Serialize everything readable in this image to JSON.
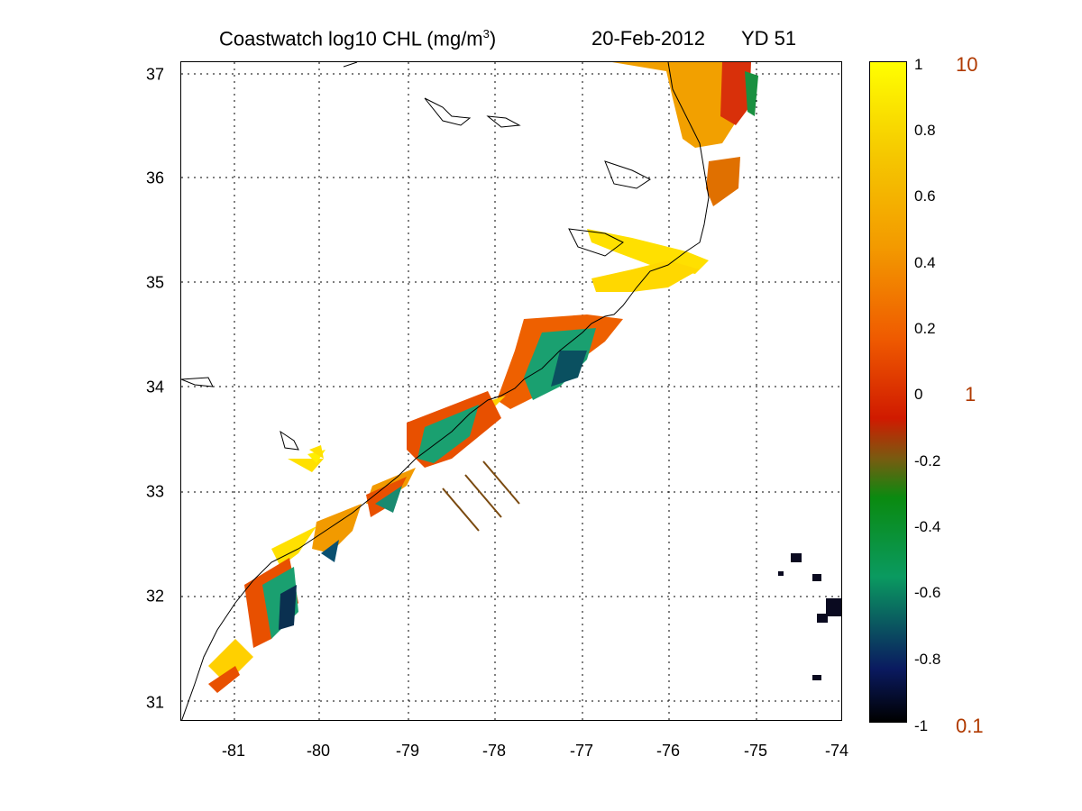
{
  "title": {
    "main_prefix": "Coastwatch  log10  CHL (mg/m",
    "main_sup": "3",
    "main_suffix": ")",
    "date": "20-Feb-2012",
    "yearday": "YD 51"
  },
  "map": {
    "x_ticks": [
      "-81",
      "-80",
      "-79",
      "-78",
      "-77",
      "-76",
      "-75",
      "-74"
    ],
    "y_ticks": [
      "37",
      "36",
      "35",
      "34",
      "33",
      "32",
      "31"
    ],
    "grid": "dotted",
    "colors": {
      "coastline": "#000000",
      "transect": "#7a4a10"
    }
  },
  "colorbar": {
    "ticks": [
      "1",
      "0.8",
      "0.6",
      "0.4",
      "0.2",
      "0",
      "-0.2",
      "-0.4",
      "-0.6",
      "-0.8",
      "-1"
    ],
    "linear_labels": [
      "10",
      "1",
      "0.1"
    ],
    "colors": {
      "max": "#ffff00",
      "mid_high": "#f39a00",
      "mid": "#d01a00",
      "zero": "#7a5a10",
      "mid_low": "#0a9a60",
      "low": "#0a1a60",
      "min": "#000000",
      "label_color": "#b03a00"
    }
  }
}
